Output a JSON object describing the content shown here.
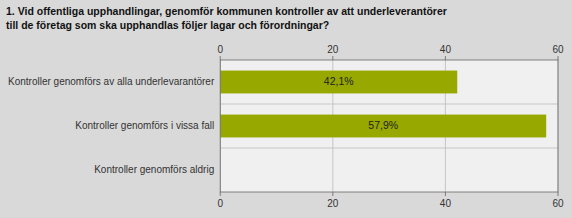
{
  "chart_data": {
    "type": "bar",
    "orientation": "horizontal",
    "title": "1. Vid offentliga upphandlingar, genomför kommunen kontroller av att underleverantörer\ntill de företag som ska upphandlas följer lagar och förordningar?",
    "categories": [
      "Kontroller genomförs av alla underlevarantörer",
      "Kontroller genomförs i vissa fall",
      "Kontroller genomförs aldrig"
    ],
    "values": [
      42.1,
      57.9,
      0.0
    ],
    "value_labels": [
      "42,1%",
      "57,9%",
      null
    ],
    "data_labels": true,
    "color": "#97a800",
    "xlim": [
      0,
      60
    ],
    "xticks": [
      0,
      20,
      40,
      60
    ],
    "grid": true
  }
}
